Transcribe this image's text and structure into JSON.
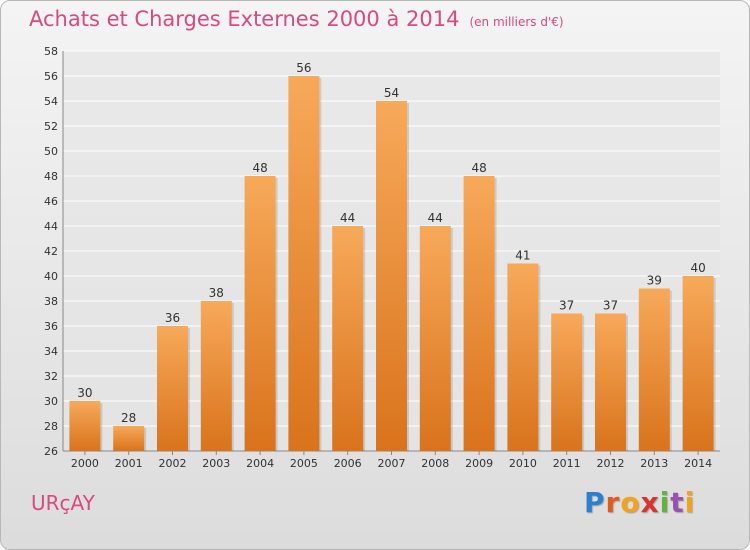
{
  "header": {
    "title": "Achats et Charges Externes 2000 à 2014",
    "unit": "(en milliers d'€)"
  },
  "footer": {
    "commune": "URçAY",
    "logo_letters": [
      "P",
      "r",
      "o",
      "x",
      "i",
      "t",
      "i"
    ],
    "logo_colors": [
      "#2f7fd1",
      "#e25a1c",
      "#f2a31b",
      "#d8342b",
      "#5fb53a",
      "#9a4fb3",
      "#f2a31b"
    ]
  },
  "chart_data": {
    "type": "bar",
    "title": "Achats et Charges Externes 2000 à 2014",
    "subtitle": "(en milliers d'€)",
    "categories": [
      "2000",
      "2001",
      "2002",
      "2003",
      "2004",
      "2005",
      "2006",
      "2007",
      "2008",
      "2009",
      "2010",
      "2011",
      "2012",
      "2013",
      "2014"
    ],
    "values": [
      30,
      28,
      36,
      38,
      48,
      56,
      44,
      54,
      44,
      48,
      41,
      37,
      37,
      39,
      40
    ],
    "ylim": [
      26,
      58
    ],
    "yticks": [
      26,
      28,
      30,
      32,
      34,
      36,
      38,
      40,
      42,
      44,
      46,
      48,
      50,
      52,
      54,
      56,
      58
    ],
    "grid": true,
    "bar_color_top": "#f7a95a",
    "bar_color_bottom": "#d9731c"
  }
}
